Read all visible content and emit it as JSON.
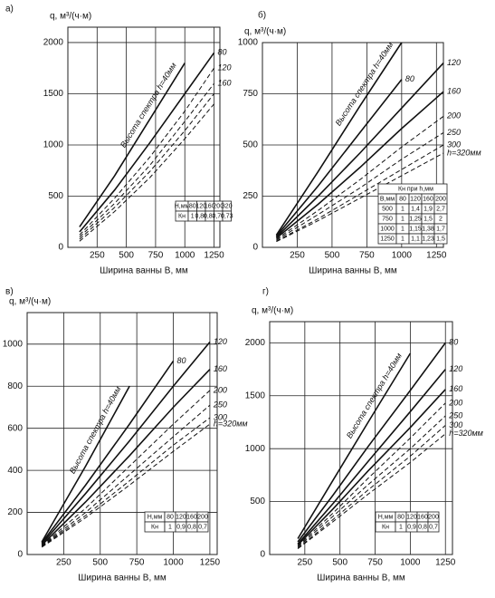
{
  "chart_data": [
    {
      "type": "line",
      "title": "а)",
      "ylabel": "q, м³/(ч·м)",
      "xlabel": "Ширина ванны В, мм",
      "xlim": [
        0,
        1300
      ],
      "ylim": [
        0,
        2150
      ],
      "xticks": [
        250,
        500,
        750,
        1000,
        1250
      ],
      "yticks": [
        0,
        500,
        1000,
        1500,
        2000
      ],
      "grid": true,
      "x": [
        100,
        400,
        700,
        1000,
        1250
      ],
      "series": [
        {
          "name": "Высота спектра h=40мм",
          "color": "#111111",
          "dashed": false,
          "values": [
            200,
            700,
            1250,
            1800,
            null
          ]
        },
        {
          "name": "80",
          "color": "#111111",
          "dashed": false,
          "values": [
            150,
            560,
            1020,
            1500,
            1900
          ]
        },
        {
          "name": "120",
          "color": "#111111",
          "dashed": true,
          "values": [
            120,
            480,
            880,
            1330,
            1750
          ]
        },
        {
          "name": "160",
          "color": "#111111",
          "dashed": true,
          "values": [
            100,
            430,
            800,
            1230,
            1600
          ]
        },
        {
          "color": "#111111",
          "dashed": true,
          "values": [
            80,
            390,
            740,
            1140,
            1500
          ]
        },
        {
          "color": "#111111",
          "dashed": true,
          "values": [
            60,
            350,
            680,
            1060,
            1400
          ]
        }
      ],
      "table": {
        "rows": [
          [
            "Н,мм",
            "80",
            "120",
            "160",
            "200",
            "320"
          ],
          [
            "Кн",
            "1",
            "0,86",
            "0,83",
            "0,76",
            "0,73"
          ]
        ]
      }
    },
    {
      "type": "line",
      "title": "б)",
      "ylabel": "q, м³/(ч·м)",
      "xlabel": "Ширина ванны В, мм",
      "xlim": [
        0,
        1300
      ],
      "ylim": [
        0,
        1000
      ],
      "xticks": [
        250,
        500,
        750,
        1000,
        1250
      ],
      "yticks": [
        0,
        250,
        500,
        750,
        1000
      ],
      "grid": true,
      "x": [
        100,
        400,
        700,
        1000,
        1300
      ],
      "series": [
        {
          "name": "Высота спектра h=40мм",
          "color": "#111111",
          "dashed": false,
          "values": [
            60,
            370,
            690,
            1000,
            null
          ]
        },
        {
          "name": "80",
          "color": "#111111",
          "dashed": false,
          "values": [
            55,
            300,
            560,
            820,
            null
          ]
        },
        {
          "name": "120",
          "color": "#111111",
          "dashed": false,
          "values": [
            50,
            250,
            460,
            680,
            900
          ]
        },
        {
          "name": "160",
          "color": "#111111",
          "dashed": false,
          "values": [
            45,
            210,
            390,
            580,
            760
          ]
        },
        {
          "name": "200",
          "color": "#111111",
          "dashed": true,
          "values": [
            40,
            180,
            330,
            490,
            640
          ]
        },
        {
          "name": "250",
          "color": "#111111",
          "dashed": true,
          "values": [
            35,
            160,
            290,
            430,
            560
          ]
        },
        {
          "name": "300",
          "color": "#111111",
          "dashed": true,
          "values": [
            30,
            140,
            260,
            380,
            500
          ]
        },
        {
          "name": "h=320мм",
          "color": "#111111",
          "dashed": true,
          "values": [
            28,
            130,
            240,
            350,
            460
          ]
        }
      ],
      "table": {
        "title": "Кн при h,мм",
        "rows": [
          [
            "В,мм",
            "80",
            "120",
            "160",
            "200"
          ],
          [
            "500",
            "1",
            "1,4",
            "1,9",
            "2,7"
          ],
          [
            "750",
            "1",
            "1,25",
            "1,5",
            "2"
          ],
          [
            "1000",
            "1",
            "1,15",
            "1,38",
            "1,7"
          ],
          [
            "1250",
            "1",
            "1,1",
            "1,23",
            "1,5"
          ]
        ]
      }
    },
    {
      "type": "line",
      "title": "в)",
      "ylabel": "q, м³/(ч·м)",
      "xlabel": "Ширина ванны В, мм",
      "xlim": [
        0,
        1300
      ],
      "ylim": [
        0,
        1150
      ],
      "xticks": [
        250,
        500,
        750,
        1000,
        1250
      ],
      "yticks": [
        0,
        200,
        400,
        600,
        800,
        1000
      ],
      "grid": true,
      "x": [
        100,
        400,
        700,
        1000,
        1250
      ],
      "series": [
        {
          "name": "Высота спектра h=40мм",
          "color": "#111111",
          "dashed": false,
          "values": [
            60,
            420,
            800,
            null,
            null
          ]
        },
        {
          "name": "80",
          "color": "#111111",
          "dashed": false,
          "values": [
            55,
            330,
            620,
            920,
            null
          ]
        },
        {
          "name": "120",
          "color": "#111111",
          "dashed": false,
          "values": [
            50,
            290,
            540,
            800,
            1010
          ]
        },
        {
          "name": "160",
          "color": "#111111",
          "dashed": false,
          "values": [
            45,
            250,
            470,
            700,
            880
          ]
        },
        {
          "name": "200",
          "color": "#111111",
          "dashed": true,
          "values": [
            42,
            220,
            420,
            620,
            780
          ]
        },
        {
          "name": "250",
          "color": "#111111",
          "dashed": true,
          "values": [
            40,
            200,
            380,
            560,
            710
          ]
        },
        {
          "name": "300",
          "color": "#111111",
          "dashed": true,
          "values": [
            38,
            185,
            350,
            520,
            650
          ]
        },
        {
          "name": "h=320мм",
          "color": "#111111",
          "dashed": true,
          "values": [
            35,
            175,
            330,
            490,
            620
          ]
        }
      ],
      "table": {
        "rows": [
          [
            "Н,мм",
            "80",
            "120",
            "160",
            "200"
          ],
          [
            "Кн",
            "1",
            "0,9",
            "0,8",
            "0,7"
          ]
        ]
      }
    },
    {
      "type": "line",
      "title": "г)",
      "ylabel": "q, м³/(ч·м)",
      "xlabel": "Ширина ванны В, мм",
      "xlim": [
        0,
        1300
      ],
      "ylim": [
        0,
        2200
      ],
      "xticks": [
        250,
        500,
        750,
        1000,
        1250
      ],
      "yticks": [
        0,
        500,
        1000,
        1500,
        2000
      ],
      "grid": true,
      "x": [
        200,
        450,
        700,
        1000,
        1250
      ],
      "series": [
        {
          "name": "Высота спектра h=40мм",
          "color": "#111111",
          "dashed": false,
          "values": [
            150,
            700,
            1250,
            1900,
            null
          ]
        },
        {
          "name": "80",
          "color": "#111111",
          "dashed": false,
          "values": [
            120,
            560,
            1020,
            1550,
            2000
          ]
        },
        {
          "name": "120",
          "color": "#111111",
          "dashed": false,
          "values": [
            100,
            480,
            880,
            1350,
            1750
          ]
        },
        {
          "name": "160",
          "color": "#111111",
          "dashed": false,
          "values": [
            90,
            430,
            790,
            1200,
            1560
          ]
        },
        {
          "name": "200",
          "color": "#111111",
          "dashed": true,
          "values": [
            80,
            390,
            720,
            1100,
            1430
          ]
        },
        {
          "name": "250",
          "color": "#111111",
          "dashed": true,
          "values": [
            70,
            360,
            660,
            1000,
            1310
          ]
        },
        {
          "name": "300",
          "color": "#111111",
          "dashed": true,
          "values": [
            60,
            330,
            610,
            930,
            1220
          ]
        },
        {
          "name": "h=320мм",
          "color": "#111111",
          "dashed": true,
          "values": [
            55,
            310,
            570,
            870,
            1140
          ]
        }
      ],
      "table": {
        "rows": [
          [
            "Н,мм",
            "80",
            "120",
            "160",
            "200"
          ],
          [
            "Кн",
            "1",
            "0,9",
            "0,8",
            "0,7"
          ]
        ]
      }
    }
  ]
}
